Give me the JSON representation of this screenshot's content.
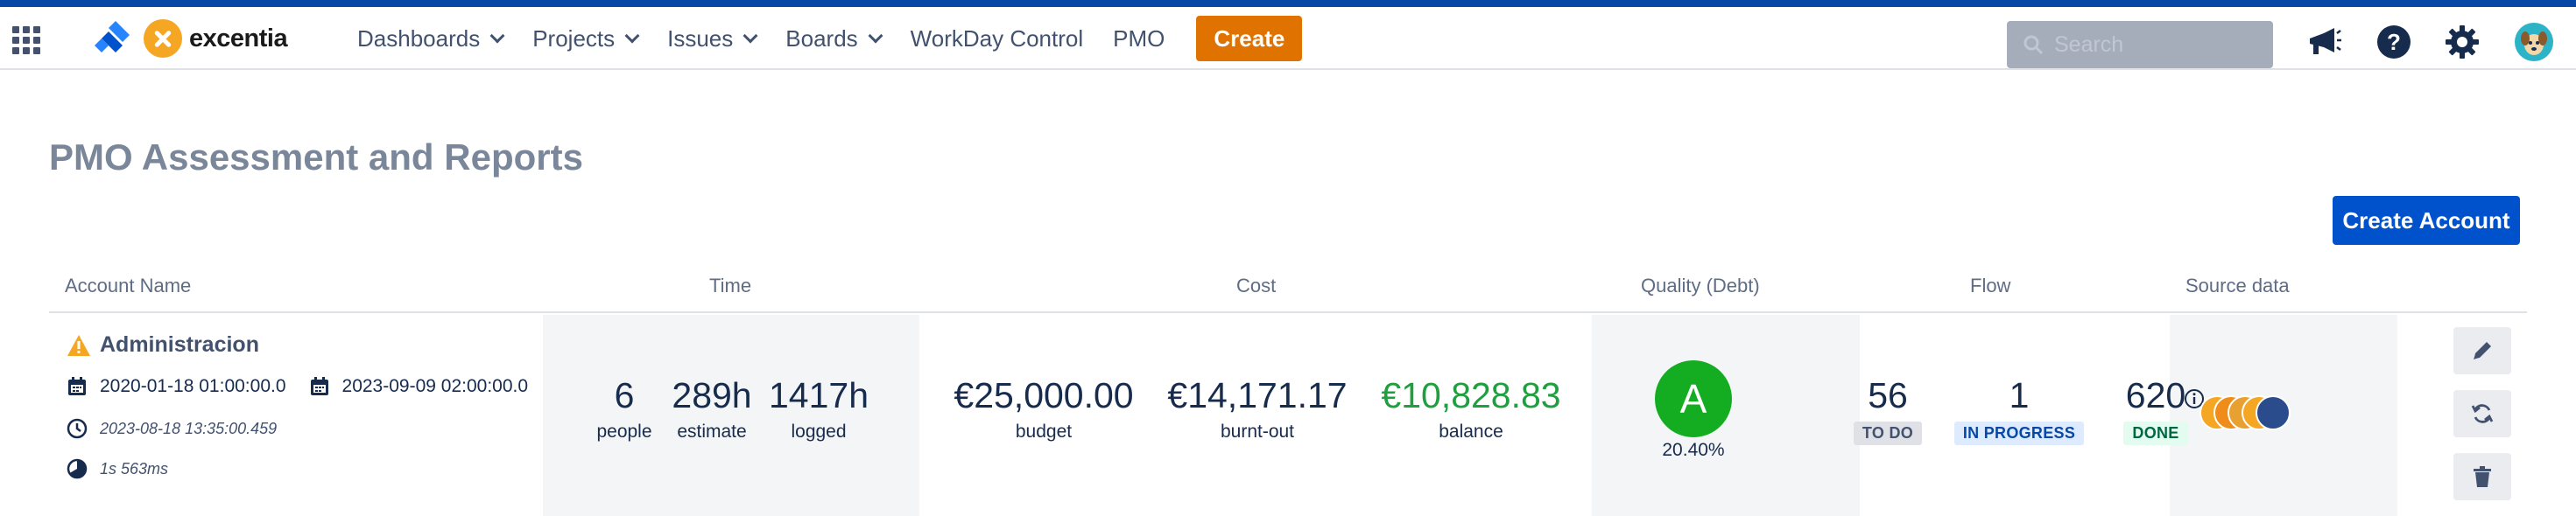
{
  "nav": {
    "logo_text": "excentia",
    "menu": [
      {
        "label": "Dashboards",
        "dropdown": true
      },
      {
        "label": "Projects",
        "dropdown": true
      },
      {
        "label": "Issues",
        "dropdown": true
      },
      {
        "label": "Boards",
        "dropdown": true
      },
      {
        "label": "WorkDay Control",
        "dropdown": false
      },
      {
        "label": "PMO",
        "dropdown": false
      }
    ],
    "create_label": "Create",
    "search_placeholder": "Search",
    "icons": [
      "app-switcher-icon",
      "announcement-icon",
      "help-icon",
      "settings-icon",
      "user-avatar"
    ]
  },
  "page": {
    "title": "PMO Assessment and Reports",
    "create_account_label": "Create Account"
  },
  "table": {
    "headers": {
      "account_name": "Account Name",
      "time": "Time",
      "cost": "Cost",
      "quality": "Quality (Debt)",
      "flow": "Flow",
      "source": "Source data"
    },
    "row": {
      "name": "Administracion",
      "start_date": "2020-01-18 01:00:00.0",
      "end_date": "2023-09-09 02:00:00.0",
      "updated": "2023-08-18 13:35:00.459",
      "duration": "1s 563ms",
      "time": {
        "people": "6",
        "people_label": "people",
        "estimate": "289h",
        "estimate_label": "estimate",
        "logged": "1417h",
        "logged_label": "logged"
      },
      "cost": {
        "budget": "€25,000.00",
        "budget_label": "budget",
        "burnt": "€14,171.17",
        "burnt_label": "burnt-out",
        "balance": "€10,828.83",
        "balance_label": "balance"
      },
      "quality": {
        "grade": "A",
        "percent": "20.40%"
      },
      "flow": {
        "todo": "56",
        "todo_label": "TO DO",
        "progress": "1",
        "progress_label": "IN PROGRESS",
        "done": "620",
        "done_label": "DONE"
      }
    }
  },
  "colors": {
    "accent_bar": "#0747a6",
    "create": "#e07200",
    "primary": "#0052cc",
    "grade_a": "#14ad22",
    "balance_positive": "#1f9f3f",
    "warning": "#f5a623"
  }
}
